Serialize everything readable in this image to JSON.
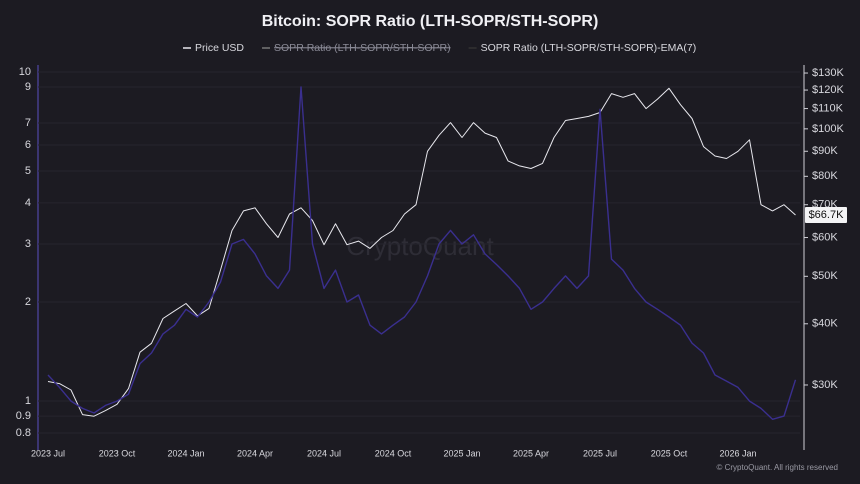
{
  "chart_data": {
    "type": "line",
    "title": "Bitcoin: SOPR Ratio (LTH-SOPR/STH-SOPR)",
    "watermark": "CryptoQuant",
    "footer": "© CryptoQuant. All rights reserved",
    "categories": [
      "2023 Jul",
      null,
      null,
      null,
      null,
      null,
      "2023 Oct",
      null,
      null,
      null,
      null,
      null,
      "2024 Jan",
      null,
      null,
      null,
      null,
      null,
      "2024 Apr",
      null,
      null,
      null,
      null,
      null,
      "2024 Jul",
      null,
      null,
      null,
      null,
      null,
      "2024 Oct",
      null,
      null,
      null,
      null,
      null,
      "2025 Jan",
      null,
      null,
      null,
      null,
      null,
      "2025 Apr",
      null,
      null,
      null,
      null,
      null,
      "2025 Jul",
      null,
      null,
      null,
      null,
      null,
      "2025 Oct",
      null,
      null,
      null,
      null,
      null,
      "2026 Jan",
      null,
      null,
      null,
      null,
      null
    ],
    "series": [
      {
        "name": "Price USD",
        "color": "#e8e8ee",
        "axis": "y2",
        "values": [
          30500,
          30200,
          29300,
          26100,
          25900,
          26600,
          27400,
          29500,
          35000,
          36500,
          41000,
          42500,
          44000,
          41500,
          43000,
          51500,
          62000,
          68000,
          69000,
          64000,
          60000,
          67000,
          69000,
          65000,
          58000,
          64000,
          58000,
          59000,
          57000,
          60000,
          62000,
          67000,
          70000,
          90000,
          97000,
          103000,
          96000,
          103000,
          98000,
          96000,
          86000,
          84000,
          83000,
          85000,
          96000,
          104000,
          105000,
          106000,
          108000,
          118000,
          116000,
          118000,
          110000,
          115000,
          121000,
          112000,
          105000,
          92000,
          88000,
          87000,
          90000,
          95000,
          70000,
          68000,
          70000,
          66700
        ]
      },
      {
        "name": "SOPR Ratio (LTH-SOPR/STH-SOPR)",
        "color": "#8a8a96",
        "hidden": true
      },
      {
        "name": "SOPR Ratio (LTH-SOPR/STH-SOPR)-EMA(7)",
        "color": "#3a2f8f",
        "values": [
          1.2,
          1.1,
          1.0,
          0.95,
          0.92,
          0.97,
          1.0,
          1.05,
          1.3,
          1.4,
          1.6,
          1.7,
          1.9,
          1.8,
          2.0,
          2.3,
          3.0,
          3.1,
          2.8,
          2.4,
          2.2,
          2.5,
          9.0,
          3.0,
          2.2,
          2.5,
          2.0,
          2.1,
          1.7,
          1.6,
          1.7,
          1.8,
          2.0,
          2.4,
          3.0,
          3.3,
          3.0,
          3.2,
          2.8,
          2.6,
          2.4,
          2.2,
          1.9,
          2.0,
          2.2,
          2.4,
          2.2,
          2.4,
          7.7,
          2.7,
          2.5,
          2.2,
          2.0,
          1.9,
          1.8,
          1.7,
          1.5,
          1.4,
          1.2,
          1.15,
          1.1,
          1.0,
          0.95,
          0.88,
          0.9,
          1.16
        ]
      }
    ],
    "ylim": [
      0.71,
      10.5
    ],
    "yticks": [
      0.8,
      0.9,
      1,
      2,
      3,
      4,
      5,
      6,
      7,
      9,
      10
    ],
    "y2lim": [
      22100,
      135000
    ],
    "y2ticks": [
      {
        "value": 30000,
        "label": "$30K"
      },
      {
        "value": 40000,
        "label": "$40K"
      },
      {
        "value": 50000,
        "label": "$50K"
      },
      {
        "value": 60000,
        "label": "$60K"
      },
      {
        "value": 70000,
        "label": "$70K"
      },
      {
        "value": 80000,
        "label": "$80K"
      },
      {
        "value": 90000,
        "label": "$90K"
      },
      {
        "value": 100000,
        "label": "$100K"
      },
      {
        "value": 110000,
        "label": "$110K"
      },
      {
        "value": 120000,
        "label": "$120K"
      },
      {
        "value": 130000,
        "label": "$130K"
      }
    ],
    "last_price_label": {
      "value": 66700,
      "label": "$66.7K"
    },
    "log_scale": true,
    "grid": true
  }
}
